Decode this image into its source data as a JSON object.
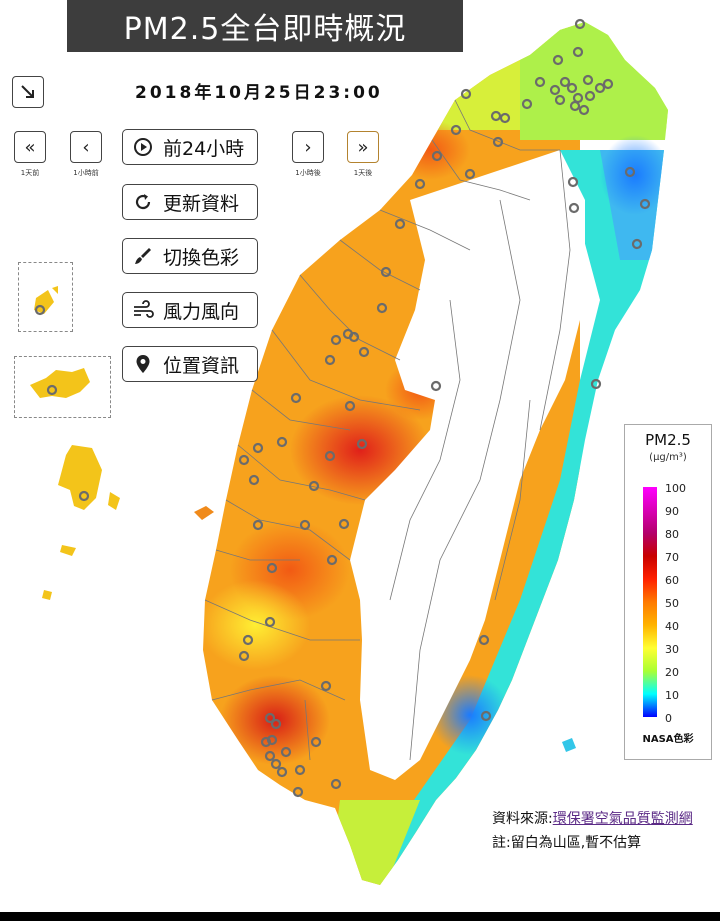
{
  "title": "PM2.5全台即時概況",
  "datetime": "2018年10月25日23:00",
  "nav": {
    "day_prev_sub": "1天前",
    "hour_prev_sub": "1小時前",
    "hour_next_sub": "1小時後",
    "day_next_sub": "1天後"
  },
  "buttons": {
    "prev24": "前24小時",
    "refresh": "更新資料",
    "color": "切換色彩",
    "wind": "風力風向",
    "location": "位置資訊"
  },
  "legend": {
    "title": "PM2.5",
    "unit": "(μg/m³)",
    "ticks": [
      "100",
      "90",
      "80",
      "70",
      "60",
      "50",
      "40",
      "30",
      "20",
      "10",
      "0"
    ],
    "palette_label": "NASA色彩"
  },
  "source_label": "資料來源:",
  "source_link": "環保署空氣品質監測網",
  "note": "註:留白為山區,暫不估算",
  "colors": {
    "title_bg": "#3d3d3d",
    "gold_border": "#b3832f"
  },
  "icons": [
    "expand-arrow-icon",
    "double-chevron-left-icon",
    "chevron-left-icon",
    "play-circle-icon",
    "chevron-right-icon",
    "double-chevron-right-icon",
    "refresh-icon",
    "paint-brush-icon",
    "wind-icon",
    "map-pin-icon"
  ]
}
